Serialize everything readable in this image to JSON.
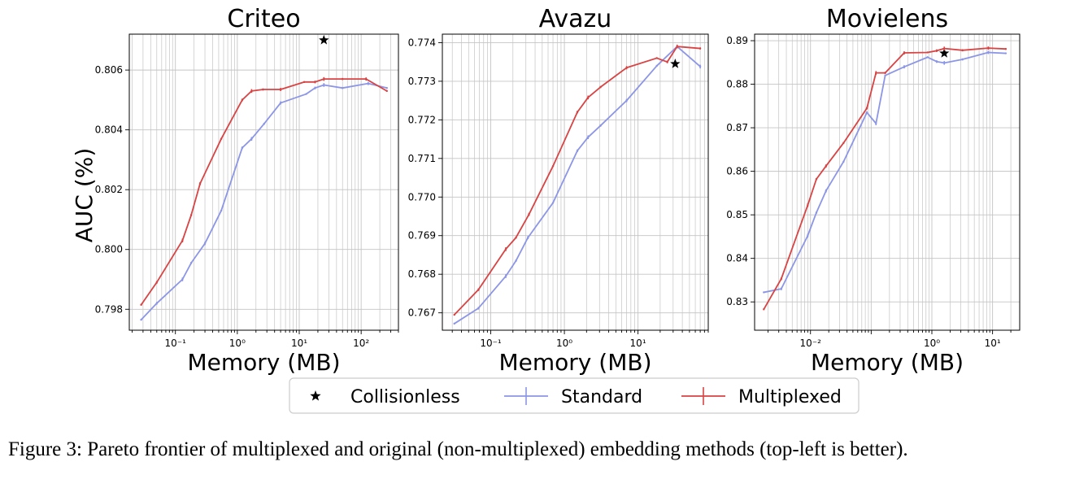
{
  "figure": {
    "caption": "Figure 3: Pareto frontier of multiplexed and original (non-multiplexed) embedding methods (top-left is better).",
    "ylabel": "AUC (%)",
    "legend": {
      "position": "bottom-center"
    },
    "colors": {
      "standard": "#8c96e6",
      "multiplexed": "#d94343",
      "collisionless": "#000000",
      "grid": "#c4c4c4"
    }
  },
  "chart_data": [
    {
      "type": "line",
      "title": "Criteo",
      "xlabel": "Memory (MB)",
      "ylabel": "AUC (%)",
      "xscale": "log",
      "xlim": [
        0.018,
        400
      ],
      "ylim": [
        0.7973,
        0.8072
      ],
      "xticks": [
        {
          "value": 0.1,
          "label": "10⁻¹"
        },
        {
          "value": 1,
          "label": "10⁰"
        },
        {
          "value": 10,
          "label": "10¹"
        },
        {
          "value": 100,
          "label": "10²"
        }
      ],
      "yticks": [
        0.798,
        0.8,
        0.802,
        0.804,
        0.806
      ],
      "ytick_labels": [
        "0.798",
        "0.800",
        "0.802",
        "0.804",
        "0.806"
      ],
      "grid": true,
      "series": [
        {
          "name": "Collisionless",
          "marker": "star",
          "points": [
            [
              25,
              0.807
            ]
          ]
        },
        {
          "name": "Standard",
          "points": [
            [
              0.028,
              0.79765
            ],
            [
              0.05,
              0.7982
            ],
            [
              0.13,
              0.799
            ],
            [
              0.18,
              0.79955
            ],
            [
              0.3,
              0.8002
            ],
            [
              0.55,
              0.8013
            ],
            [
              1.2,
              0.8034
            ],
            [
              1.7,
              0.8037
            ],
            [
              2.7,
              0.8042
            ],
            [
              5,
              0.8049
            ],
            [
              13,
              0.8052
            ],
            [
              18,
              0.8054
            ],
            [
              25,
              0.8055
            ],
            [
              50,
              0.8054
            ],
            [
              130,
              0.80555
            ],
            [
              260,
              0.8054
            ]
          ]
        },
        {
          "name": "Multiplexed",
          "points": [
            [
              0.028,
              0.79815
            ],
            [
              0.05,
              0.7989
            ],
            [
              0.13,
              0.8003
            ],
            [
              0.18,
              0.80115
            ],
            [
              0.25,
              0.8022
            ],
            [
              0.55,
              0.8037
            ],
            [
              1.2,
              0.805
            ],
            [
              1.7,
              0.8053
            ],
            [
              2.6,
              0.80535
            ],
            [
              5,
              0.80535
            ],
            [
              12,
              0.8056
            ],
            [
              18,
              0.8056
            ],
            [
              25,
              0.8057
            ],
            [
              50,
              0.8057
            ],
            [
              120,
              0.8057
            ],
            [
              260,
              0.8053
            ]
          ]
        }
      ]
    },
    {
      "type": "line",
      "title": "Avazu",
      "xlabel": "Memory (MB)",
      "ylabel": "",
      "xscale": "log",
      "xlim": [
        0.022,
        90
      ],
      "ylim": [
        0.76655,
        0.77422
      ],
      "xticks": [
        {
          "value": 0.1,
          "label": "10⁻¹"
        },
        {
          "value": 1,
          "label": "10⁰"
        },
        {
          "value": 10,
          "label": "10¹"
        }
      ],
      "yticks": [
        0.767,
        0.768,
        0.769,
        0.77,
        0.771,
        0.772,
        0.773,
        0.774
      ],
      "ytick_labels": [
        "0.767",
        "0.768",
        "0.769",
        "0.770",
        "0.771",
        "0.772",
        "0.773",
        "0.774"
      ],
      "grid": true,
      "series": [
        {
          "name": "Collisionless",
          "marker": "star",
          "points": [
            [
              32,
              0.77345
            ]
          ]
        },
        {
          "name": "Standard",
          "points": [
            [
              0.032,
              0.76672
            ],
            [
              0.068,
              0.76712
            ],
            [
              0.16,
              0.76795
            ],
            [
              0.22,
              0.76835
            ],
            [
              0.32,
              0.76895
            ],
            [
              0.7,
              0.76985
            ],
            [
              1.5,
              0.7712
            ],
            [
              2.1,
              0.77155
            ],
            [
              3.1,
              0.77185
            ],
            [
              7,
              0.7725
            ],
            [
              18,
              0.7734
            ],
            [
              34,
              0.7739
            ],
            [
              70,
              0.77338
            ]
          ]
        },
        {
          "name": "Multiplexed",
          "points": [
            [
              0.032,
              0.76695
            ],
            [
              0.068,
              0.7676
            ],
            [
              0.16,
              0.76865
            ],
            [
              0.22,
              0.76895
            ],
            [
              0.33,
              0.76955
            ],
            [
              0.7,
              0.7708
            ],
            [
              1.5,
              0.7722
            ],
            [
              2.1,
              0.77258
            ],
            [
              3.1,
              0.77285
            ],
            [
              7,
              0.77335
            ],
            [
              18,
              0.7736
            ],
            [
              25,
              0.7735
            ],
            [
              34,
              0.7739
            ],
            [
              70,
              0.77385
            ]
          ]
        }
      ]
    },
    {
      "type": "line",
      "title": "Movielens",
      "xlabel": "Memory (MB)",
      "ylabel": "",
      "xscale": "log",
      "xlim": [
        0.0012,
        28
      ],
      "ylim": [
        0.8235,
        0.8915
      ],
      "xticks": [
        {
          "value": 0.01,
          "label": "10⁻²"
        },
        {
          "value": 1,
          "label": "10⁰"
        },
        {
          "value": 10,
          "label": "10¹"
        }
      ],
      "yticks": [
        0.83,
        0.84,
        0.85,
        0.86,
        0.87,
        0.88,
        0.89
      ],
      "ytick_labels": [
        "0.83",
        "0.84",
        "0.85",
        "0.86",
        "0.87",
        "0.88",
        "0.89"
      ],
      "grid": true,
      "series": [
        {
          "name": "Collisionless",
          "marker": "star",
          "points": [
            [
              1.6,
              0.8871
            ]
          ]
        },
        {
          "name": "Standard",
          "points": [
            [
              0.0017,
              0.8322
            ],
            [
              0.0033,
              0.833
            ],
            [
              0.009,
              0.8452
            ],
            [
              0.0125,
              0.8505
            ],
            [
              0.018,
              0.8555
            ],
            [
              0.035,
              0.8622
            ],
            [
              0.085,
              0.8735
            ],
            [
              0.12,
              0.871
            ],
            [
              0.17,
              0.882
            ],
            [
              0.35,
              0.884
            ],
            [
              0.85,
              0.8862
            ],
            [
              1.2,
              0.8852
            ],
            [
              1.6,
              0.8849
            ],
            [
              3.2,
              0.8857
            ],
            [
              8.5,
              0.8873
            ],
            [
              16.5,
              0.8871
            ]
          ]
        },
        {
          "name": "Multiplexed",
          "points": [
            [
              0.0017,
              0.8283
            ],
            [
              0.0033,
              0.8353
            ],
            [
              0.009,
              0.8522
            ],
            [
              0.0125,
              0.8582
            ],
            [
              0.018,
              0.8612
            ],
            [
              0.035,
              0.8665
            ],
            [
              0.085,
              0.8745
            ],
            [
              0.12,
              0.8826
            ],
            [
              0.17,
              0.8826
            ],
            [
              0.35,
              0.8872
            ],
            [
              0.85,
              0.8873
            ],
            [
              1.2,
              0.8877
            ],
            [
              1.6,
              0.8882
            ],
            [
              3.2,
              0.8878
            ],
            [
              8.5,
              0.8883
            ],
            [
              16.5,
              0.8881
            ]
          ]
        }
      ]
    }
  ]
}
